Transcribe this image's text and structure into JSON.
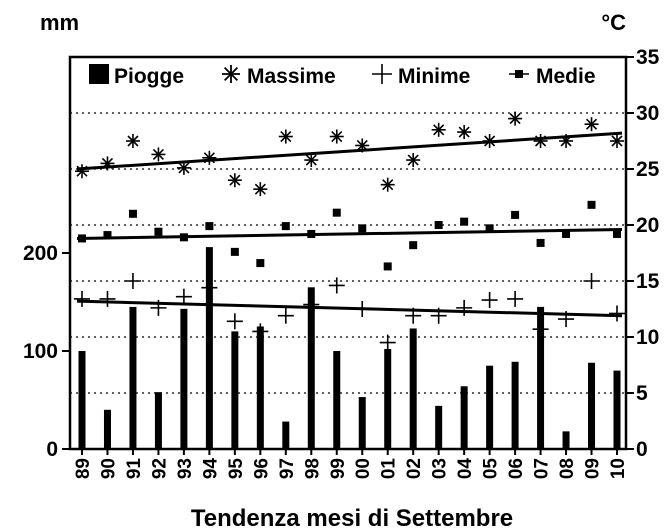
{
  "chart_data": {
    "type": "bar+scatter",
    "xlabel": "Tendenza mesi di Settembre",
    "y_left_label": "mm",
    "y_right_label": "°C",
    "y_left_ticks": [
      0,
      100,
      200
    ],
    "y_left_range": [
      0,
      400
    ],
    "y_right_ticks": [
      0,
      5,
      10,
      15,
      20,
      25,
      30,
      35
    ],
    "y_right_range": [
      0,
      35
    ],
    "grid": "horizontal dotted",
    "legend_position": "top",
    "categories": [
      "89",
      "90",
      "91",
      "92",
      "93",
      "94",
      "95",
      "96",
      "97",
      "98",
      "99",
      "00",
      "01",
      "02",
      "03",
      "04",
      "05",
      "06",
      "07",
      "08",
      "09",
      "10"
    ],
    "series": [
      {
        "name": "Piogge",
        "kind": "bar",
        "axis": "left",
        "values": [
          100,
          40,
          145,
          58,
          143,
          206,
          120,
          125,
          28,
          165,
          100,
          53,
          102,
          123,
          44,
          64,
          85,
          89,
          145,
          18,
          88,
          80
        ]
      },
      {
        "name": "Massime",
        "kind": "asterisk",
        "axis": "right",
        "values": [
          24.8,
          25.5,
          27.5,
          26.3,
          25.1,
          26.0,
          24.0,
          23.2,
          27.9,
          25.8,
          27.9,
          27.1,
          23.6,
          25.8,
          28.5,
          28.3,
          27.5,
          29.5,
          27.5,
          27.5,
          29.0,
          27.5
        ]
      },
      {
        "name": "Minime",
        "kind": "plus",
        "axis": "right",
        "values": [
          13.4,
          13.4,
          15.0,
          12.6,
          13.6,
          14.4,
          11.4,
          10.5,
          11.9,
          12.9,
          14.6,
          12.5,
          9.5,
          11.9,
          11.9,
          12.6,
          13.3,
          13.4,
          10.7,
          11.6,
          15.0,
          12.1
        ]
      },
      {
        "name": "Medie",
        "kind": "square",
        "axis": "right",
        "values": [
          18.8,
          19.1,
          21.0,
          19.4,
          18.9,
          19.9,
          17.6,
          16.6,
          19.9,
          19.2,
          21.1,
          19.7,
          16.3,
          18.2,
          20.0,
          20.3,
          19.7,
          20.9,
          18.4,
          19.2,
          21.8,
          19.2
        ]
      }
    ],
    "trendlines": [
      {
        "series": "Massime",
        "start": 25.0,
        "end": 28.2
      },
      {
        "series": "Medie",
        "start": 18.8,
        "end": 19.6
      },
      {
        "series": "Minime",
        "start": 13.2,
        "end": 11.9
      }
    ]
  }
}
